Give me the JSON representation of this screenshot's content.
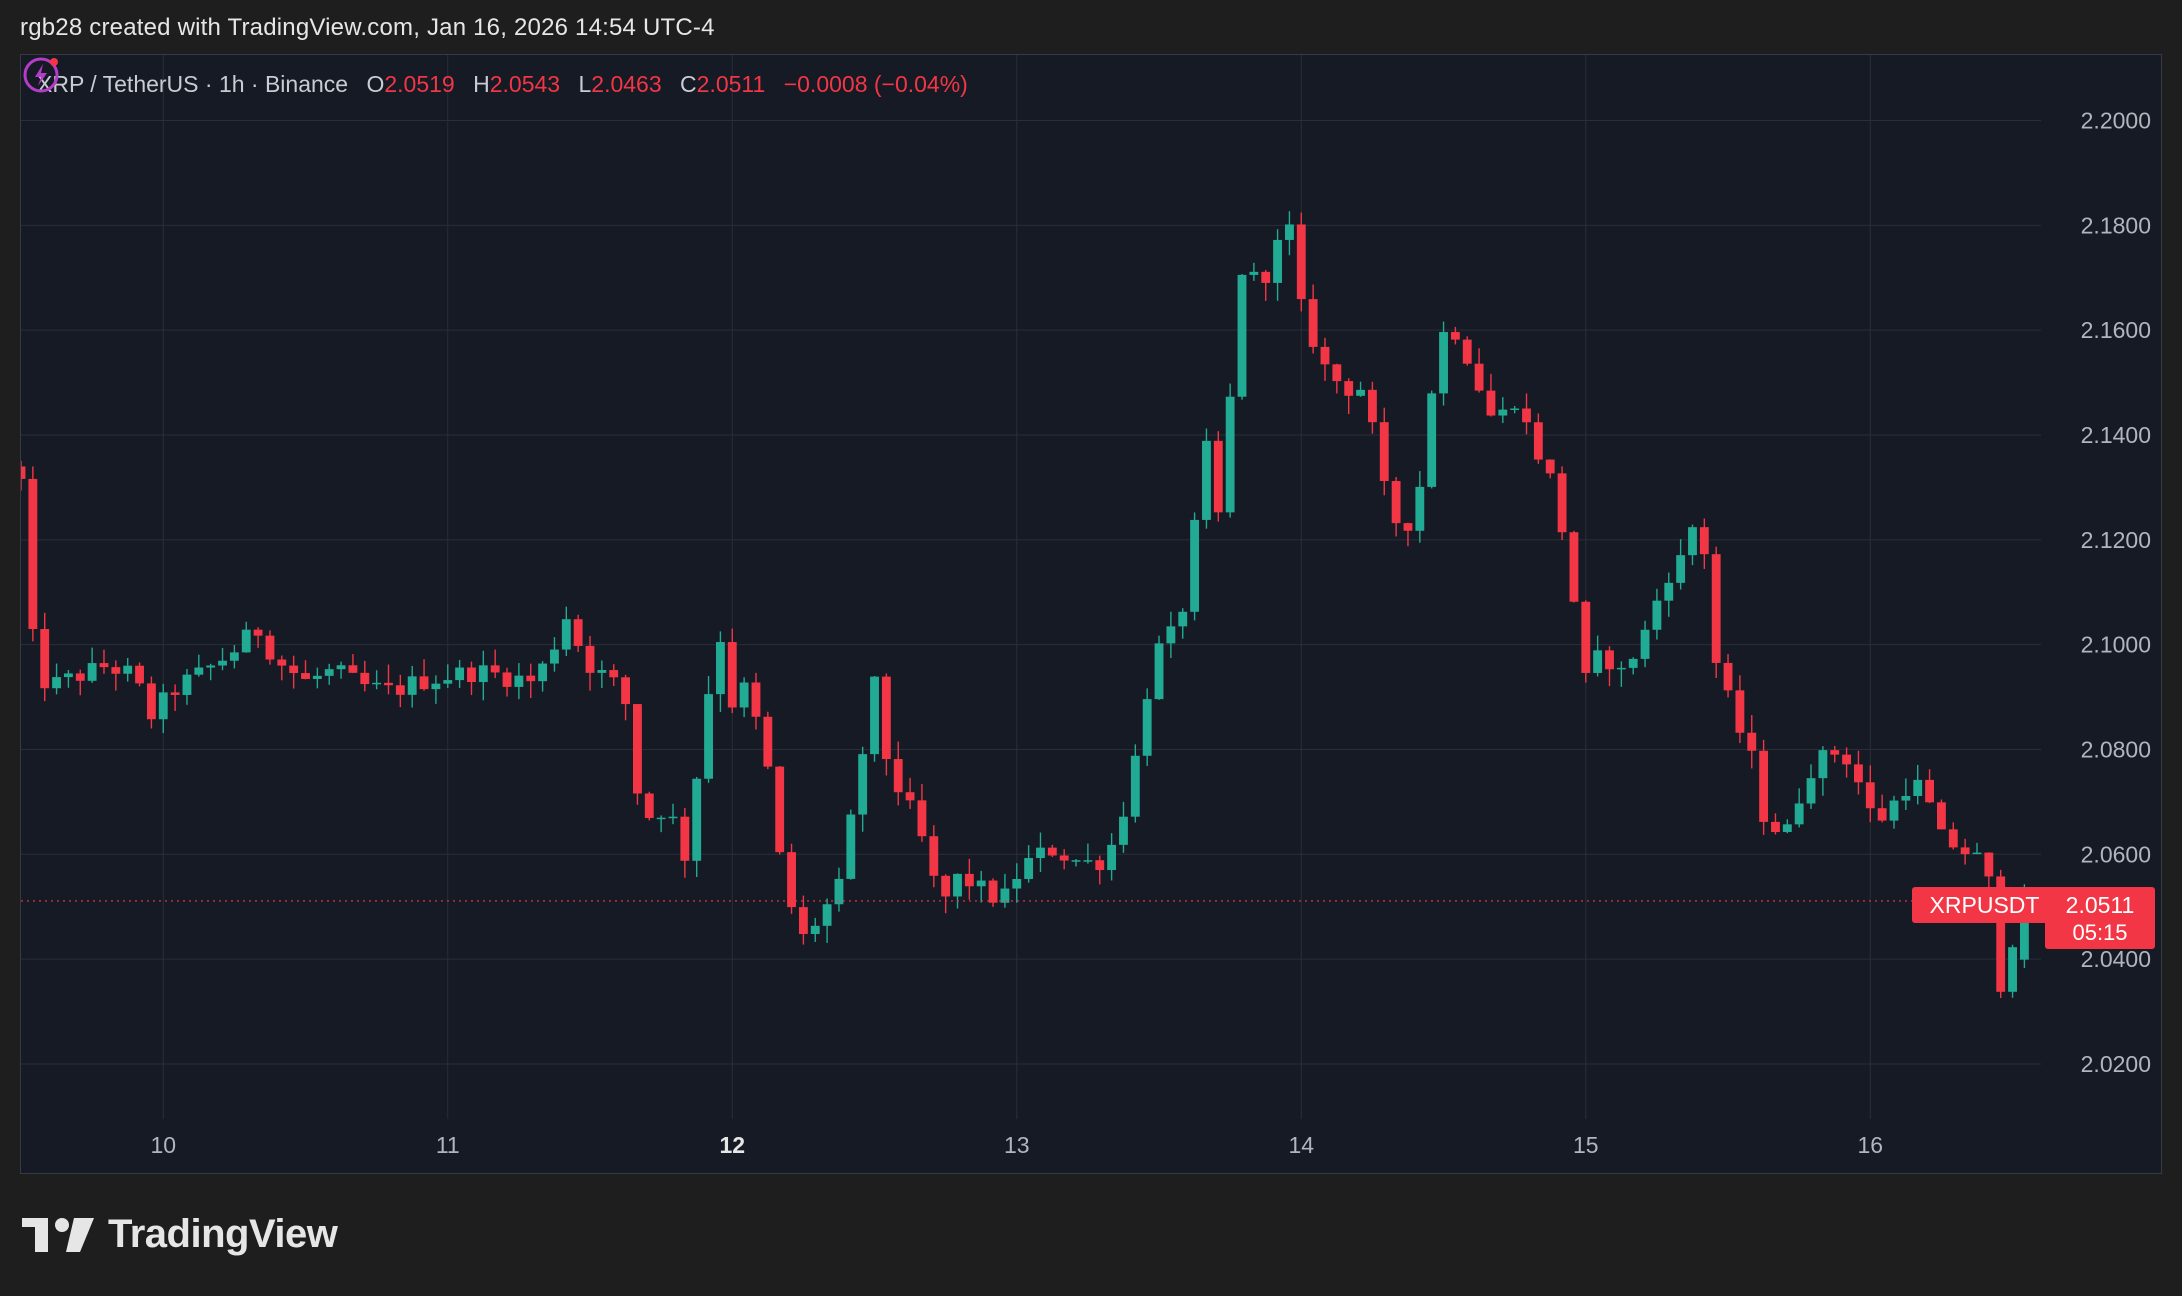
{
  "header": {
    "attribution": "rgb28 created with TradingView.com, Jan 16, 2026 14:54 UTC-4"
  },
  "legend": {
    "symbol": "XRP / TetherUS · 1h · Binance",
    "open_label": "O",
    "open_value": "2.0519",
    "high_label": "H",
    "high_value": "2.0543",
    "low_label": "L",
    "low_value": "2.0463",
    "close_label": "C",
    "close_value": "2.0511",
    "change": "−0.0008 (−0.04%)"
  },
  "price_tag": {
    "symbol": "XRPUSDT",
    "price": "2.0511",
    "countdown": "05:15"
  },
  "footer": {
    "brand": "TradingView"
  },
  "colors": {
    "up": "#22ab94",
    "down": "#f23645",
    "background": "#161a24",
    "grid": "#2a2e39",
    "text": "#b2b5be"
  },
  "chart_data": {
    "type": "candlestick",
    "symbol": "XRP / TetherUS",
    "interval": "1h",
    "exchange": "Binance",
    "y_ticks": [
      "2.0200",
      "2.0400",
      "2.0600",
      "2.0800",
      "2.1000",
      "2.1200",
      "2.1400",
      "2.1600",
      "2.1800",
      "2.2000"
    ],
    "x_ticks": [
      {
        "label": "10",
        "day": 10,
        "bold": false
      },
      {
        "label": "11",
        "day": 11,
        "bold": false
      },
      {
        "label": "12",
        "day": 12,
        "bold": true
      },
      {
        "label": "13",
        "day": 13,
        "bold": false
      },
      {
        "label": "14",
        "day": 14,
        "bold": false
      },
      {
        "label": "15",
        "day": 15,
        "bold": false
      },
      {
        "label": "16",
        "day": 16,
        "bold": false
      }
    ],
    "x_range": [
      9.5,
      16.6
    ],
    "ylim": [
      2.0095,
      2.2125
    ],
    "last_price": 2.0511,
    "grid": true,
    "close_path": [
      [
        9.5,
        2.131
      ],
      [
        9.55,
        2.095
      ],
      [
        9.6,
        2.092
      ],
      [
        9.7,
        2.094
      ],
      [
        9.8,
        2.096
      ],
      [
        9.9,
        2.094
      ],
      [
        9.95,
        2.086
      ],
      [
        10.05,
        2.092
      ],
      [
        10.15,
        2.095
      ],
      [
        10.25,
        2.099
      ],
      [
        10.33,
        2.103
      ],
      [
        10.4,
        2.097
      ],
      [
        10.5,
        2.093
      ],
      [
        10.6,
        2.095
      ],
      [
        10.7,
        2.092
      ],
      [
        10.8,
        2.091
      ],
      [
        10.9,
        2.093
      ],
      [
        11.0,
        2.094
      ],
      [
        11.1,
        2.095
      ],
      [
        11.2,
        2.094
      ],
      [
        11.3,
        2.093
      ],
      [
        11.35,
        2.097
      ],
      [
        11.42,
        2.106
      ],
      [
        11.48,
        2.097
      ],
      [
        11.55,
        2.094
      ],
      [
        11.62,
        2.091
      ],
      [
        11.66,
        2.073
      ],
      [
        11.72,
        2.066
      ],
      [
        11.78,
        2.071
      ],
      [
        11.82,
        2.055
      ],
      [
        11.88,
        2.077
      ],
      [
        11.95,
        2.104
      ],
      [
        12.0,
        2.089
      ],
      [
        12.05,
        2.092
      ],
      [
        12.12,
        2.078
      ],
      [
        12.18,
        2.054
      ],
      [
        12.25,
        2.044
      ],
      [
        12.32,
        2.049
      ],
      [
        12.38,
        2.054
      ],
      [
        12.45,
        2.077
      ],
      [
        12.5,
        2.092
      ],
      [
        12.55,
        2.076
      ],
      [
        12.62,
        2.069
      ],
      [
        12.68,
        2.061
      ],
      [
        12.73,
        2.05
      ],
      [
        12.8,
        2.056
      ],
      [
        12.88,
        2.053
      ],
      [
        12.95,
        2.051
      ],
      [
        13.0,
        2.056
      ],
      [
        13.05,
        2.059
      ],
      [
        13.12,
        2.061
      ],
      [
        13.2,
        2.059
      ],
      [
        13.28,
        2.058
      ],
      [
        13.35,
        2.063
      ],
      [
        13.42,
        2.079
      ],
      [
        13.48,
        2.098
      ],
      [
        13.55,
        2.102
      ],
      [
        13.6,
        2.11
      ],
      [
        13.66,
        2.139
      ],
      [
        13.72,
        2.121
      ],
      [
        13.78,
        2.172
      ],
      [
        13.85,
        2.169
      ],
      [
        13.9,
        2.173
      ],
      [
        13.95,
        2.182
      ],
      [
        14.0,
        2.164
      ],
      [
        14.08,
        2.153
      ],
      [
        14.15,
        2.149
      ],
      [
        14.22,
        2.149
      ],
      [
        14.3,
        2.127
      ],
      [
        14.36,
        2.121
      ],
      [
        14.42,
        2.131
      ],
      [
        14.48,
        2.159
      ],
      [
        14.55,
        2.16
      ],
      [
        14.62,
        2.15
      ],
      [
        14.68,
        2.142
      ],
      [
        14.75,
        2.147
      ],
      [
        14.82,
        2.138
      ],
      [
        14.88,
        2.131
      ],
      [
        14.93,
        2.119
      ],
      [
        15.0,
        2.093
      ],
      [
        15.06,
        2.099
      ],
      [
        15.12,
        2.094
      ],
      [
        15.2,
        2.101
      ],
      [
        15.28,
        2.113
      ],
      [
        15.35,
        2.117
      ],
      [
        15.4,
        2.128
      ],
      [
        15.45,
        2.098
      ],
      [
        15.52,
        2.086
      ],
      [
        15.58,
        2.079
      ],
      [
        15.62,
        2.068
      ],
      [
        15.7,
        2.063
      ],
      [
        15.78,
        2.076
      ],
      [
        15.85,
        2.079
      ],
      [
        15.9,
        2.08
      ],
      [
        15.95,
        2.075
      ],
      [
        16.0,
        2.068
      ],
      [
        16.05,
        2.067
      ],
      [
        16.12,
        2.073
      ],
      [
        16.18,
        2.073
      ],
      [
        16.25,
        2.063
      ],
      [
        16.32,
        2.061
      ],
      [
        16.38,
        2.059
      ],
      [
        16.42,
        2.054
      ],
      [
        16.45,
        2.034
      ],
      [
        16.5,
        2.044
      ],
      [
        16.55,
        2.0511
      ]
    ]
  }
}
